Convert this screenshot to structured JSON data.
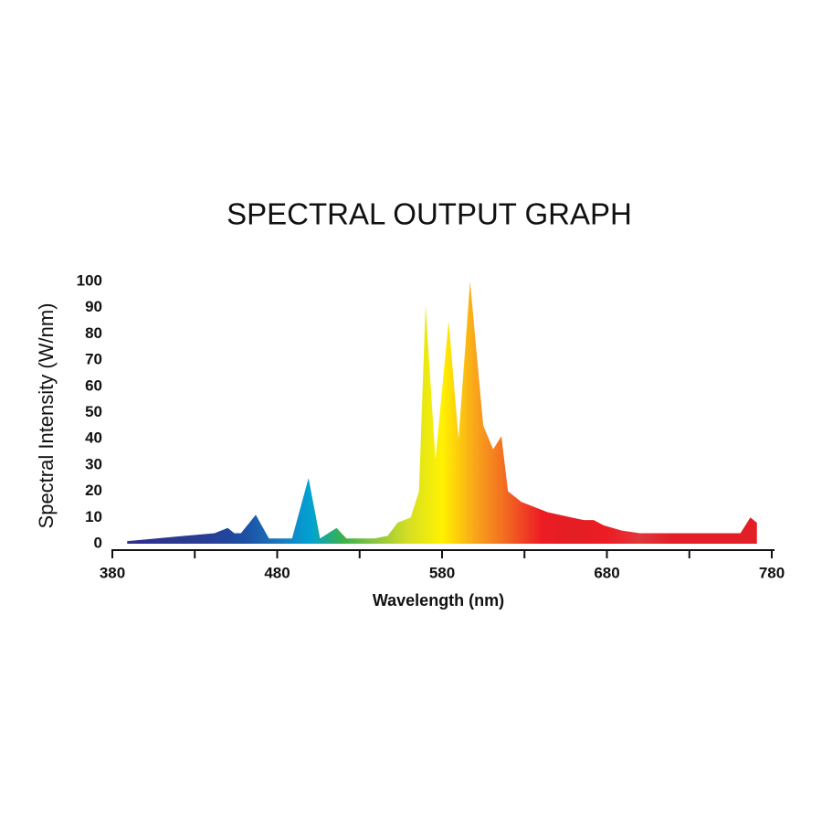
{
  "chart_data": {
    "type": "area",
    "title": "SPECTRAL OUTPUT GRAPH",
    "x_label": "Wavelength (nm)",
    "y_label": "Spectral Intensity (W/nm)",
    "x": [
      389,
      400,
      420,
      442,
      450,
      454,
      458,
      467,
      475,
      489,
      499,
      506,
      516,
      522,
      539,
      547,
      553,
      561,
      566,
      570,
      576,
      584,
      590,
      597,
      605,
      611,
      616,
      620,
      628,
      644,
      666,
      672,
      678,
      689,
      700,
      761,
      765,
      767,
      771
    ],
    "values": [
      1,
      1.6,
      2.8,
      4,
      6,
      4,
      4,
      11,
      2,
      2,
      25,
      2,
      6,
      2,
      2,
      3,
      8,
      10,
      20,
      91,
      32,
      85,
      40,
      100,
      45,
      36,
      41,
      20,
      16,
      12,
      9,
      9,
      7,
      5,
      4,
      4,
      8,
      10,
      8
    ],
    "xlim": [
      380,
      780
    ],
    "xticks": [
      380,
      480,
      580,
      680,
      780
    ],
    "x_minor_ticks": [
      430,
      530,
      630,
      730
    ],
    "ylim": [
      0,
      100
    ],
    "yticks": [
      0,
      10,
      20,
      30,
      40,
      50,
      60,
      70,
      80,
      90,
      100
    ],
    "spectrum_colors": [
      "#2e3192",
      "#2e3192",
      "#2b3990",
      "#283f97",
      "#1c4fa3",
      "#1b75bc",
      "#00a2d3",
      "#3cb14a",
      "#8dc63f",
      "#d7df23",
      "#fff200",
      "#f9a61a",
      "#f26522",
      "#ed1c24",
      "#e31e24",
      "#ed1c24",
      "#e0383a",
      "#e21e26",
      "#e21e26",
      "#e21e26",
      "#e21e26"
    ]
  }
}
